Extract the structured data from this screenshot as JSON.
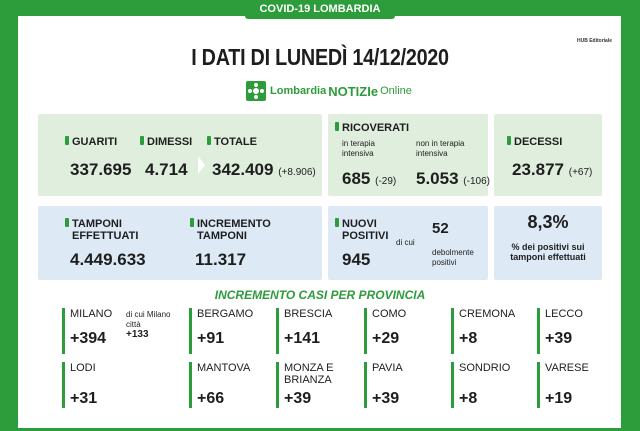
{
  "header": {
    "banner": "COVID-19 LOMBARDIA",
    "hub": "HUB Editoriale",
    "title": "I DATI DI LUNEDÌ 14/12/2020",
    "logo": {
      "part1": "Lombardia",
      "part2": "NOTIZIe",
      "part3": "Online"
    }
  },
  "stats": {
    "guariti": {
      "label": "GUARITI",
      "value": "337.695"
    },
    "dimessi": {
      "label": "DIMESSI",
      "value": "4.714"
    },
    "totale": {
      "label": "TOTALE",
      "value": "342.409",
      "delta": "(+8.906)"
    },
    "ricoverati": {
      "label": "RICOVERATI",
      "ti_label": "in terapia intensiva",
      "ti_value": "685",
      "ti_delta": "(-29)",
      "nti_label": "non in terapia intensiva",
      "nti_value": "5.053",
      "nti_delta": "(-106)"
    },
    "decessi": {
      "label": "DECESSI",
      "value": "23.877",
      "delta": "(+67)"
    },
    "tamponi": {
      "label": "TAMPONI EFFETTUATI",
      "value": "4.449.633"
    },
    "incremento": {
      "label": "INCREMENTO TAMPONI",
      "value": "11.317"
    },
    "nuovi": {
      "label": "NUOVI POSITIVI",
      "value": "945",
      "dicui": "di cui",
      "deb_value": "52",
      "deb_label": "debolmente positivi"
    },
    "perc": {
      "value": "8,3%",
      "label": "% dei positivi sui tamponi effettuati"
    }
  },
  "provinces_title": "INCREMENTO CASI PER PROVINCIA",
  "provinces": [
    {
      "name": "MILANO",
      "value": "+394"
    },
    {
      "name": "BERGAMO",
      "value": "+91"
    },
    {
      "name": "BRESCIA",
      "value": "+141"
    },
    {
      "name": "COMO",
      "value": "+29"
    },
    {
      "name": "CREMONA",
      "value": "+8"
    },
    {
      "name": "LECCO",
      "value": "+39"
    },
    {
      "name": "LODI",
      "value": "+31"
    },
    {
      "name": "MANTOVA",
      "value": "+66"
    },
    {
      "name": "MONZA E BRIANZA",
      "value": "+39"
    },
    {
      "name": "PAVIA",
      "value": "+39"
    },
    {
      "name": "SONDRIO",
      "value": "+8"
    },
    {
      "name": "VARESE",
      "value": "+19"
    }
  ],
  "milano_city": {
    "label": "di cui Milano città",
    "value": "+133"
  },
  "colors": {
    "green": "#2d9c3a",
    "panel_green": "#dfeedd",
    "panel_blue": "#ddeaf6",
    "accent_dot": "#2d9c3a"
  }
}
